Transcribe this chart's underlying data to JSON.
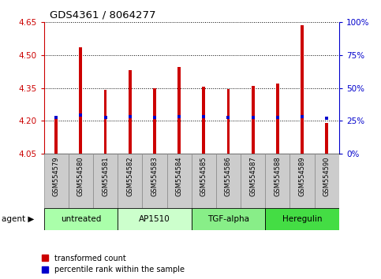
{
  "title": "GDS4361 / 8064277",
  "samples": [
    "GSM554579",
    "GSM554580",
    "GSM554581",
    "GSM554582",
    "GSM554583",
    "GSM554584",
    "GSM554585",
    "GSM554586",
    "GSM554587",
    "GSM554588",
    "GSM554589",
    "GSM554590"
  ],
  "red_values": [
    4.22,
    4.535,
    4.34,
    4.43,
    4.35,
    4.445,
    4.355,
    4.345,
    4.36,
    4.37,
    4.635,
    4.19
  ],
  "blue_values": [
    4.215,
    4.225,
    4.215,
    4.22,
    4.215,
    4.22,
    4.22,
    4.215,
    4.215,
    4.215,
    4.22,
    4.21
  ],
  "ylim_left": [
    4.05,
    4.65
  ],
  "ylim_right": [
    0,
    100
  ],
  "yticks_left": [
    4.05,
    4.2,
    4.35,
    4.5,
    4.65
  ],
  "yticks_right": [
    0,
    25,
    50,
    75,
    100
  ],
  "ytick_labels_right": [
    "0%",
    "25%",
    "50%",
    "75%",
    "100%"
  ],
  "base": 4.05,
  "agent_groups": [
    {
      "label": "untreated",
      "start": 0,
      "end": 2,
      "color": "#aaffaa"
    },
    {
      "label": "AP1510",
      "start": 3,
      "end": 5,
      "color": "#ccffcc"
    },
    {
      "label": "TGF-alpha",
      "start": 6,
      "end": 8,
      "color": "#88ee88"
    },
    {
      "label": "Heregulin",
      "start": 9,
      "end": 11,
      "color": "#44dd44"
    }
  ],
  "bar_color": "#cc0000",
  "blue_color": "#0000cc",
  "bar_width": 0.12,
  "sample_box_color": "#cccccc",
  "sample_box_color_alt": "#dddddd"
}
